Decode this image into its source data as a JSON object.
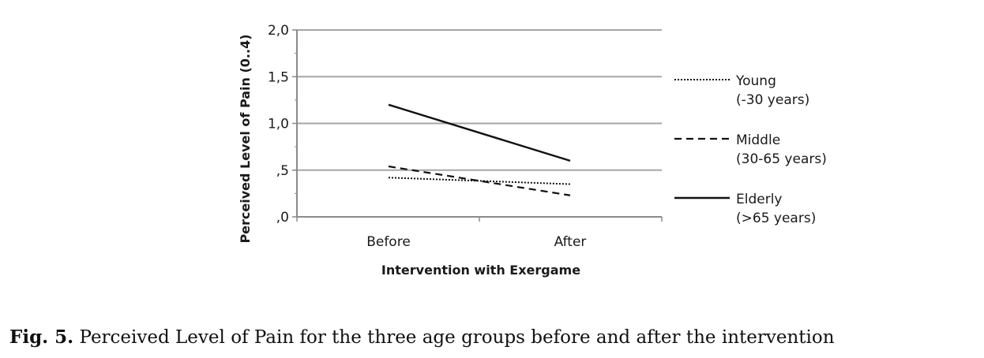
{
  "chart_data": {
    "type": "line",
    "categories": [
      "Before",
      "After"
    ],
    "xlabel": "Intervention with Exergame",
    "ylabel": "Perceived Level of Pain (0..4)",
    "ylim": [
      0,
      2.0
    ],
    "yticks": [
      {
        "value": 0.0,
        "label": ",0"
      },
      {
        "value": 0.5,
        "label": ",5"
      },
      {
        "value": 1.0,
        "label": "1,0"
      },
      {
        "value": 1.5,
        "label": "1,5"
      },
      {
        "value": 2.0,
        "label": "2,0"
      }
    ],
    "grid": true,
    "legend_position": "right",
    "series": [
      {
        "name_line1": "Young",
        "name_line2": "(-30 years)",
        "style": "dotted",
        "values": [
          0.42,
          0.35
        ]
      },
      {
        "name_line1": "Middle",
        "name_line2": "(30-65 years)",
        "style": "dashed",
        "values": [
          0.54,
          0.23
        ]
      },
      {
        "name_line1": "Elderly",
        "name_line2": "(>65 years)",
        "style": "solid",
        "values": [
          1.2,
          0.6
        ]
      }
    ]
  },
  "caption": {
    "label": "Fig. 5.",
    "text": " Perceived Level of Pain for the three age groups before and after the intervention"
  }
}
